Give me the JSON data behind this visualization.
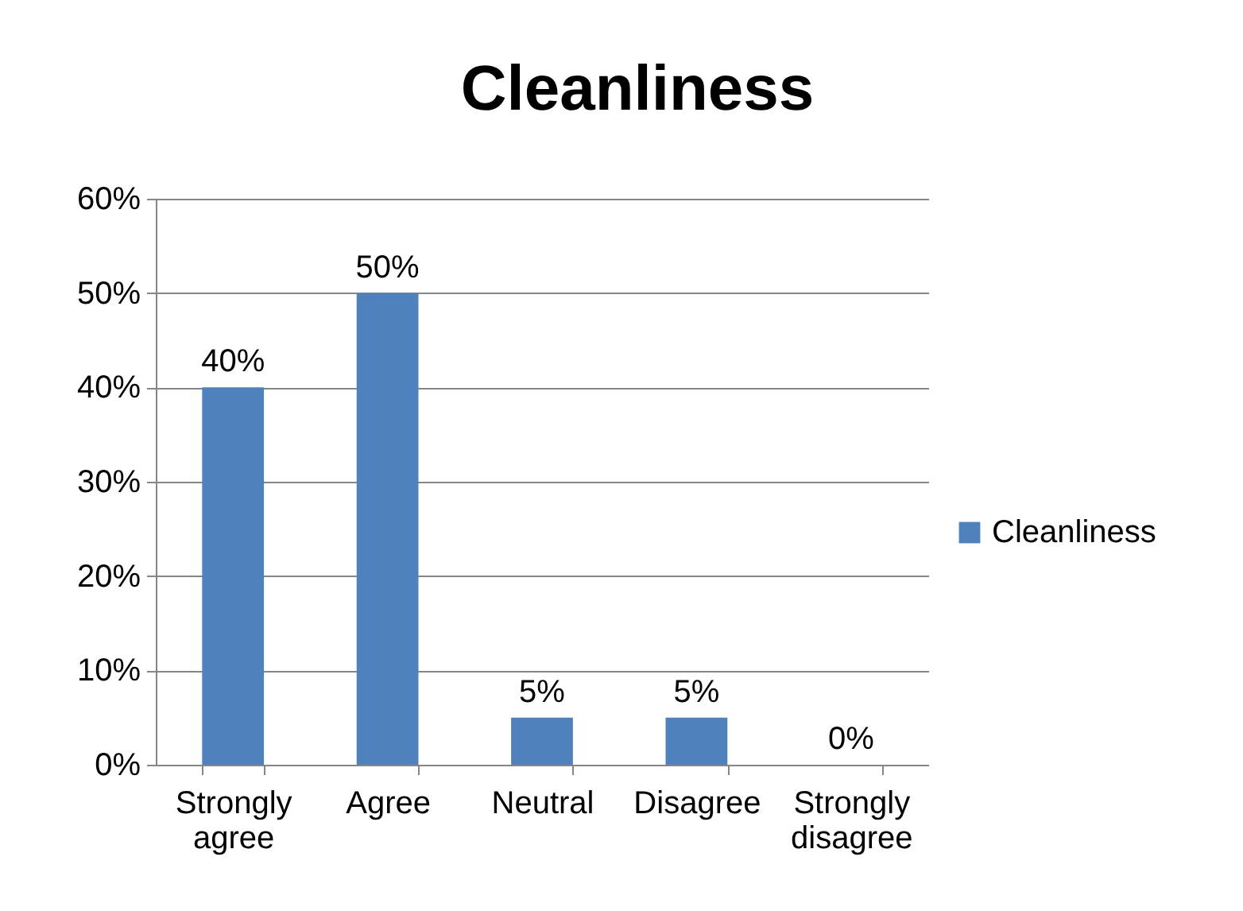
{
  "chart_data": {
    "type": "bar",
    "title": "Cleanliness",
    "categories": [
      "Strongly agree",
      "Agree",
      "Neutral",
      "Disagree",
      "Strongly disagree"
    ],
    "series": [
      {
        "name": "Cleanliness",
        "color": "#4f81bd",
        "values": [
          40,
          50,
          5,
          5,
          0
        ],
        "value_labels": [
          "40%",
          "50%",
          "5%",
          "5%",
          "0%"
        ]
      }
    ],
    "ylim": [
      0,
      60
    ],
    "yticks": [
      {
        "value": 0,
        "label": "0%"
      },
      {
        "value": 10,
        "label": "10%"
      },
      {
        "value": 20,
        "label": "20%"
      },
      {
        "value": 30,
        "label": "30%"
      },
      {
        "value": 40,
        "label": "40%"
      },
      {
        "value": 50,
        "label": "50%"
      },
      {
        "value": 60,
        "label": "60%"
      }
    ],
    "grid": "y",
    "legend": "right"
  }
}
